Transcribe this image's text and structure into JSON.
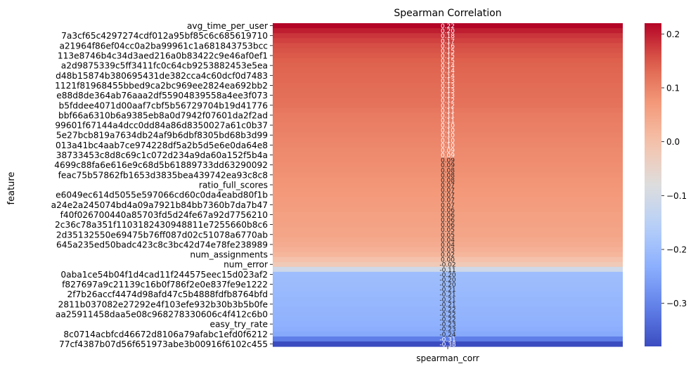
{
  "chart_data": {
    "type": "heatmap",
    "title": "Spearman Correlation",
    "xlabel": "",
    "ylabel": "feature",
    "x_categories": [
      "spearman_corr"
    ],
    "colormap": "coolwarm",
    "vmin": -0.38,
    "vmax": 0.22,
    "colorbar_ticks": [
      0.2,
      0.1,
      0.0,
      -0.1,
      -0.2,
      -0.3
    ],
    "colorbar_tick_labels": [
      "0.2",
      "0.1",
      "0.0",
      "−0.1",
      "−0.2",
      "−0.3"
    ],
    "labeled_rows": [
      {
        "label": "avg_time_per_user",
        "value": 0.22
      },
      {
        "label": "7a3cf65c4297274cdf012a95bf85c6c685619710",
        "value": 0.18
      },
      {
        "label": "a21964f86ef04cc0a2ba99961c1a681843753bcc",
        "value": 0.16
      },
      {
        "label": "113e8746b4c34d3aed216a0b83422c9e46af0ef1",
        "value": 0.15
      },
      {
        "label": "a2d9875339c5ff3411fc0c64cb9253882453e5ea",
        "value": 0.14
      },
      {
        "label": "d48b15874b380695431de382cca4c60dcf0d7483",
        "value": 0.135
      },
      {
        "label": "1121f81968455bbed9ca2bc969ee2824ea692bb2",
        "value": 0.13
      },
      {
        "label": "e88d8de364ab76aaa2df55904839558a4ee3f073",
        "value": 0.125
      },
      {
        "label": "b5fddee4071d00aaf7cbf5b56729704b19d41776",
        "value": 0.12
      },
      {
        "label": "bbf66a6310b6a9385eb8a0d7942f07601da2f2ad",
        "value": 0.11
      },
      {
        "label": "99601f67144a4dcc0dd84a86d8350027a61c0b37",
        "value": 0.105
      },
      {
        "label": "5e27bcb819a7634db24af9b6dbf8305bd68b3d99",
        "value": 0.1
      },
      {
        "label": "013a41bc4aab7ce974228df5a2b5d5e6e0da64e8",
        "value": 0.095
      },
      {
        "label": "38733453c8d8c69c1c072d234a9da60a152f5b4a",
        "value": 0.09
      },
      {
        "label": "4699c88fa6e616e9c68d5b61889733dd63290092",
        "value": 0.085
      },
      {
        "label": "feac75b57862fb1653d3835bea439742ea93c8c8",
        "value": 0.08
      },
      {
        "label": "ratio_full_scores",
        "value": 0.075
      },
      {
        "label": "e6049ec614d5055e597066cd60c0da4eabd80f1b",
        "value": 0.07
      },
      {
        "label": "a24e2a245074bd4a09a7921b84bb7360b7da7b47",
        "value": 0.065
      },
      {
        "label": "f40f026700440a85703fd5d24fe67a92d7756210",
        "value": 0.06
      },
      {
        "label": "2c36c78a351f1103182430948811e7255660b8c6",
        "value": 0.055
      },
      {
        "label": "2d35132550e69475b76ff087d02c51078a6770ab",
        "value": 0.05
      },
      {
        "label": "645a235ed50badc423c8c3bc42d74e78fe238989",
        "value": 0.04
      },
      {
        "label": "num_assignments",
        "value": 0.02
      },
      {
        "label": "num_error",
        "value": -0.02
      },
      {
        "label": "0aba1ce54b04f1d4cad11f244575eec15d023af2",
        "value": -0.2
      },
      {
        "label": "f827697a9c21139c16b0f786f2e0e837fe9e1222",
        "value": -0.205
      },
      {
        "label": "2f7b26accf4474d98afd47c5b4888fdfb8764bfd",
        "value": -0.21
      },
      {
        "label": "2811b037082e27292e4f103efe932b30b3b5b0fe",
        "value": -0.215
      },
      {
        "label": "aa25911458daa5e08c968278330606c4f412c6b0",
        "value": -0.22
      },
      {
        "label": "easy_try_rate",
        "value": -0.225
      },
      {
        "label": "8c0714acbfcd46672d8106a79afabc1efd0f6212",
        "value": -0.24
      },
      {
        "label": "77cf4387b07d56f651973abe3b00916f6102c455",
        "value": -0.38
      }
    ]
  }
}
